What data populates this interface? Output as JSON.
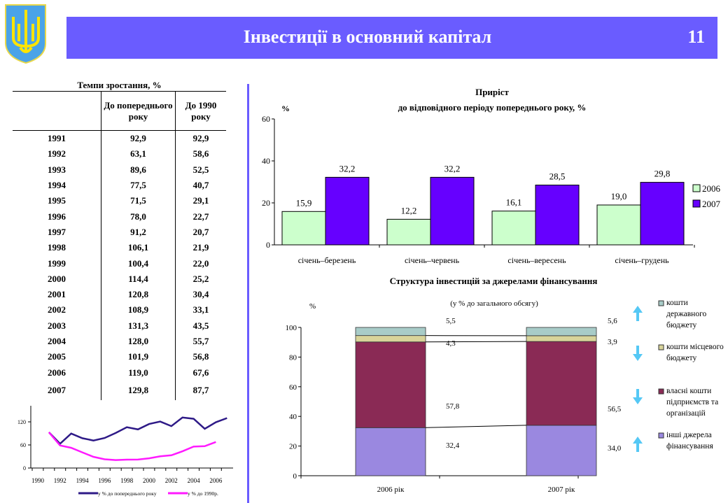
{
  "header": {
    "title": "Інвестиції в основний капітал",
    "page_number": "11",
    "color": "#6a5cff"
  },
  "table": {
    "title": "Темпи зростання, %",
    "col1": "До попереднього року",
    "col2": "До 1990 року",
    "rows": [
      [
        "1991",
        "92,9",
        "92,9"
      ],
      [
        "1992",
        "63,1",
        "58,6"
      ],
      [
        "1993",
        "89,6",
        "52,5"
      ],
      [
        "1994",
        "77,5",
        "40,7"
      ],
      [
        "1995",
        "71,5",
        "29,1"
      ],
      [
        "1996",
        "78,0",
        "22,7"
      ],
      [
        "1997",
        "91,2",
        "20,7"
      ],
      [
        "1998",
        "106,1",
        "21,9"
      ],
      [
        "1999",
        "100,4",
        "22,0"
      ],
      [
        "2000",
        "114,4",
        "25,2"
      ],
      [
        "2001",
        "120,8",
        "30,4"
      ],
      [
        "2002",
        "108,9",
        "33,1"
      ],
      [
        "2003",
        "131,3",
        "43,5"
      ],
      [
        "2004",
        "128,0",
        "55,7"
      ],
      [
        "2005",
        "101,9",
        "56,8"
      ],
      [
        "2006",
        "119,0",
        "67,6"
      ],
      [
        "2007",
        "129,8",
        "87,7"
      ]
    ]
  },
  "chart_data": [
    {
      "type": "line",
      "x": [
        1991,
        1992,
        1993,
        1994,
        1995,
        1996,
        1997,
        1998,
        1999,
        2000,
        2001,
        2002,
        2003,
        2004,
        2005,
        2006,
        2007
      ],
      "xticks": [
        "1990",
        "1992",
        "1994",
        "1996",
        "1998",
        "2000",
        "2002",
        "2004",
        "2006"
      ],
      "yticks": [
        "0",
        "60",
        "120"
      ],
      "ylim": [
        0,
        160
      ],
      "series": [
        {
          "name": "у % до попереднього року",
          "color": "#2e1a87",
          "values": [
            92.9,
            63.1,
            89.6,
            77.5,
            71.5,
            78.0,
            91.2,
            106.1,
            100.4,
            114.4,
            120.8,
            108.9,
            131.3,
            128.0,
            101.9,
            119.0,
            129.8
          ]
        },
        {
          "name": "у % до 1990р.",
          "color": "#ff1aff",
          "values": [
            92.9,
            58.6,
            52.5,
            40.7,
            29.1,
            22.7,
            20.7,
            21.9,
            22.0,
            25.2,
            30.4,
            33.1,
            43.5,
            55.7,
            56.8,
            67.6,
            null
          ]
        }
      ]
    },
    {
      "type": "bar",
      "title": "Приріст",
      "subtitle": "до відповідного періоду попереднього року, %",
      "ylabel": "%",
      "ylim": [
        0,
        60
      ],
      "yticks": [
        "0",
        "20",
        "40",
        "60"
      ],
      "categories": [
        "січень–березень",
        "січень–червень",
        "січень–вересень",
        "січень–грудень"
      ],
      "series": [
        {
          "name": "2006",
          "color": "#ccffcc",
          "values": [
            15.9,
            12.2,
            16.1,
            19.0
          ],
          "labels": [
            "15,9",
            "12,2",
            "16,1",
            "19,0"
          ]
        },
        {
          "name": "2007",
          "color": "#6600ff",
          "values": [
            32.2,
            32.2,
            28.5,
            29.8
          ],
          "labels": [
            "32,2",
            "32,2",
            "28,5",
            "29,8"
          ]
        }
      ]
    },
    {
      "type": "bar",
      "stacked": true,
      "title": "Структура інвестицій за джерелами фінансування",
      "subtitle": "(у % до загального обсягу)",
      "ylabel": "%",
      "ylim": [
        0,
        100
      ],
      "yticks": [
        "0",
        "20",
        "40",
        "60",
        "80",
        "100"
      ],
      "categories": [
        "2006 рік",
        "2007 рік"
      ],
      "series": [
        {
          "name": "інші джерела фінансування",
          "color": "#9a88e0",
          "values": [
            32.4,
            34.0
          ],
          "labels": [
            "32,4",
            "34,0"
          ],
          "trend": "up"
        },
        {
          "name": "власні кошти підприємств та організацій",
          "color": "#8a2a55",
          "values": [
            57.8,
            56.5
          ],
          "labels": [
            "57,8",
            "56,5"
          ],
          "trend": "down"
        },
        {
          "name": "кошти місцевого бюджету",
          "color": "#d8d49a",
          "values": [
            4.3,
            3.9
          ],
          "labels": [
            "4,3",
            "3,9"
          ],
          "trend": "down"
        },
        {
          "name": "кошти державного бюджету",
          "color": "#a8ccc8",
          "values": [
            5.5,
            5.6
          ],
          "labels": [
            "5,5",
            "5,6"
          ],
          "trend": "up"
        }
      ]
    }
  ]
}
